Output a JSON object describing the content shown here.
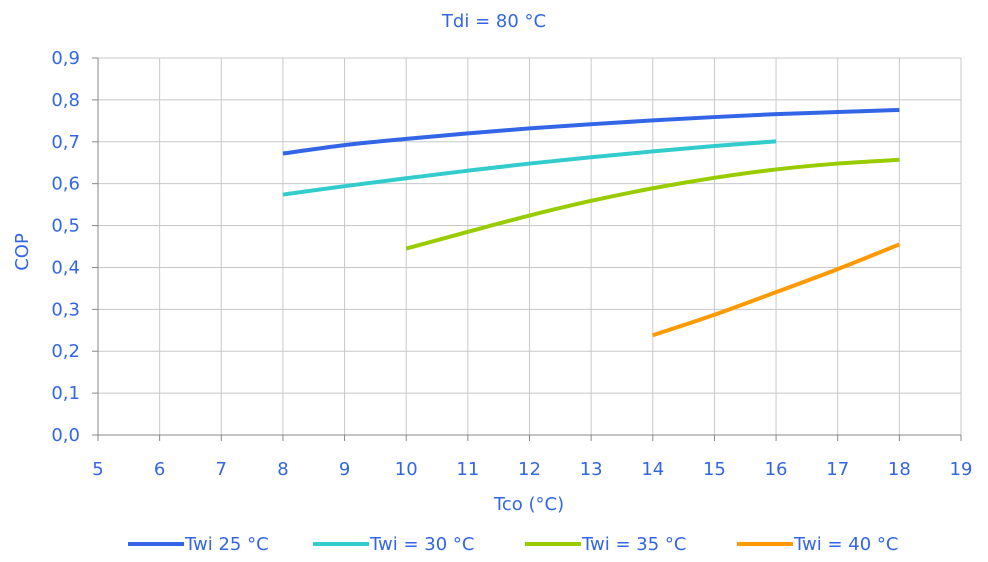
{
  "chart_data": {
    "type": "line",
    "title": "Tdi = 80 °C",
    "xlabel": "Tco (°C)",
    "ylabel": "COP",
    "xlim": [
      5,
      19
    ],
    "ylim": [
      0,
      0.9
    ],
    "x_ticks": [
      "5",
      "6",
      "7",
      "8",
      "9",
      "10",
      "11",
      "12",
      "13",
      "14",
      "15",
      "16",
      "17",
      "18",
      "19"
    ],
    "y_ticks": [
      "0,0",
      "0,1",
      "0,2",
      "0,3",
      "0,4",
      "0,5",
      "0,6",
      "0,7",
      "0,8",
      "0,9"
    ],
    "grid": true,
    "legend_position": "bottom",
    "series": [
      {
        "name": "Twi 25 °C",
        "color": "#3366e6",
        "x": [
          8,
          9,
          10,
          11,
          12,
          13,
          14,
          15,
          16,
          17,
          18
        ],
        "y": [
          0.672,
          0.692,
          0.707,
          0.72,
          0.732,
          0.742,
          0.751,
          0.759,
          0.766,
          0.771,
          0.776
        ]
      },
      {
        "name": "Twi = 30 °C",
        "color": "#33cccc",
        "x": [
          8,
          9,
          10,
          11,
          12,
          13,
          14,
          15,
          16
        ],
        "y": [
          0.574,
          0.594,
          0.613,
          0.631,
          0.648,
          0.663,
          0.677,
          0.69,
          0.701
        ]
      },
      {
        "name": "Twi = 35 °C",
        "color": "#99cc00",
        "x": [
          10,
          11,
          12,
          13,
          14,
          15,
          16,
          17,
          18
        ],
        "y": [
          0.445,
          0.485,
          0.524,
          0.559,
          0.589,
          0.614,
          0.634,
          0.648,
          0.657
        ]
      },
      {
        "name": "Twi = 40 °C",
        "color": "#ff9900",
        "x": [
          14,
          15,
          16,
          17,
          18
        ],
        "y": [
          0.238,
          0.287,
          0.341,
          0.396,
          0.455
        ]
      }
    ]
  }
}
